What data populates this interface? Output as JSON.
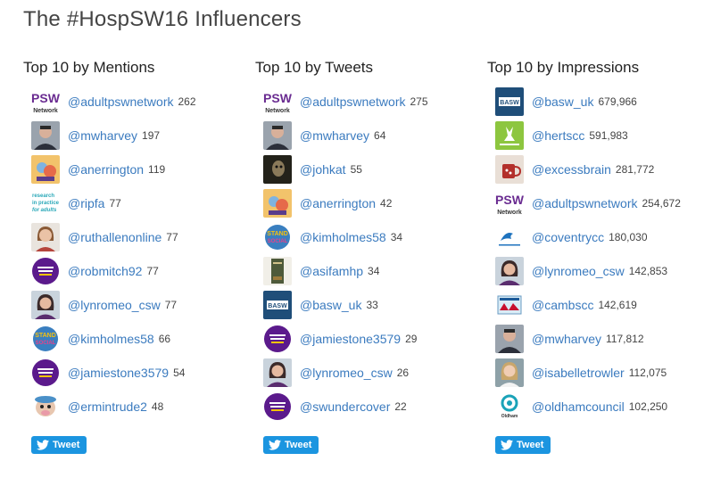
{
  "page_title": "The #HospSW16 Influencers",
  "columns": [
    {
      "title": "Top 10 by Mentions",
      "tweet_label": "Tweet",
      "rows": [
        {
          "handle": "@adultpswnetwork",
          "count": "262",
          "avatar": "psw",
          "color": "#6a2c91"
        },
        {
          "handle": "@mwharvey",
          "count": "197",
          "avatar": "person-suit",
          "color": "#3d3d3d"
        },
        {
          "handle": "@anerrington",
          "count": "119",
          "avatar": "cartoon-face",
          "color": "#e38c3c"
        },
        {
          "handle": "@ripfa",
          "count": "77",
          "avatar": "research-in-practice",
          "color": "#2aa8b8"
        },
        {
          "handle": "@ruthallenonline",
          "count": "77",
          "avatar": "person-woman",
          "color": "#b77b55"
        },
        {
          "handle": "@robmitch92",
          "count": "77",
          "avatar": "purple-badge",
          "color": "#5b1a8c"
        },
        {
          "handle": "@lynromeo_csw",
          "count": "77",
          "avatar": "person-woman-dark",
          "color": "#3b2a4a"
        },
        {
          "handle": "@kimholmes58",
          "count": "66",
          "avatar": "stand-up-badge",
          "color": "#3a7fc0"
        },
        {
          "handle": "@jamiestone3579",
          "count": "54",
          "avatar": "purple-badge",
          "color": "#5b1a8c"
        },
        {
          "handle": "@ermintrude2",
          "count": "48",
          "avatar": "cartoon-cow",
          "color": "#4a90c8"
        }
      ]
    },
    {
      "title": "Top 10 by Tweets",
      "tweet_label": "Tweet",
      "rows": [
        {
          "handle": "@adultpswnetwork",
          "count": "275",
          "avatar": "psw",
          "color": "#6a2c91"
        },
        {
          "handle": "@mwharvey",
          "count": "64",
          "avatar": "person-suit",
          "color": "#3d3d3d"
        },
        {
          "handle": "@johkat",
          "count": "55",
          "avatar": "person-dark",
          "color": "#2d2a1e"
        },
        {
          "handle": "@anerrington",
          "count": "42",
          "avatar": "cartoon-face",
          "color": "#e38c3c"
        },
        {
          "handle": "@kimholmes58",
          "count": "34",
          "avatar": "stand-up-badge",
          "color": "#3a7fc0"
        },
        {
          "handle": "@asifamhp",
          "count": "34",
          "avatar": "book-spine",
          "color": "#4e5a3a"
        },
        {
          "handle": "@basw_uk",
          "count": "33",
          "avatar": "basw-logo",
          "color": "#1f4e79"
        },
        {
          "handle": "@jamiestone3579",
          "count": "29",
          "avatar": "purple-badge",
          "color": "#5b1a8c"
        },
        {
          "handle": "@lynromeo_csw",
          "count": "26",
          "avatar": "person-woman-dark",
          "color": "#3b2a4a"
        },
        {
          "handle": "@swundercover",
          "count": "22",
          "avatar": "purple-badge",
          "color": "#5b1a8c"
        }
      ]
    },
    {
      "title": "Top 10 by Impressions",
      "tweet_label": "Tweet",
      "rows": [
        {
          "handle": "@basw_uk",
          "count": "679,966",
          "avatar": "basw-logo",
          "color": "#1f4e79"
        },
        {
          "handle": "@hertscc",
          "count": "591,983",
          "avatar": "herts-logo",
          "color": "#8dc63f"
        },
        {
          "handle": "@excessbrain",
          "count": "281,772",
          "avatar": "mug-photo",
          "color": "#b3302b"
        },
        {
          "handle": "@adultpswnetwork",
          "count": "254,672",
          "avatar": "psw",
          "color": "#6a2c91"
        },
        {
          "handle": "@coventrycc",
          "count": "180,030",
          "avatar": "coventry-logo",
          "color": "#1e73be"
        },
        {
          "handle": "@lynromeo_csw",
          "count": "142,853",
          "avatar": "person-woman-dark",
          "color": "#3b2a4a"
        },
        {
          "handle": "@cambscc",
          "count": "142,619",
          "avatar": "cambs-logo",
          "color": "#c8102e"
        },
        {
          "handle": "@mwharvey",
          "count": "117,812",
          "avatar": "person-suit",
          "color": "#3d3d3d"
        },
        {
          "handle": "@isabelletrowler",
          "count": "112,075",
          "avatar": "person-blonde",
          "color": "#c9a66b"
        },
        {
          "handle": "@oldhamcouncil",
          "count": "102,250",
          "avatar": "oldham-logo",
          "color": "#1aa3b8"
        }
      ]
    }
  ]
}
